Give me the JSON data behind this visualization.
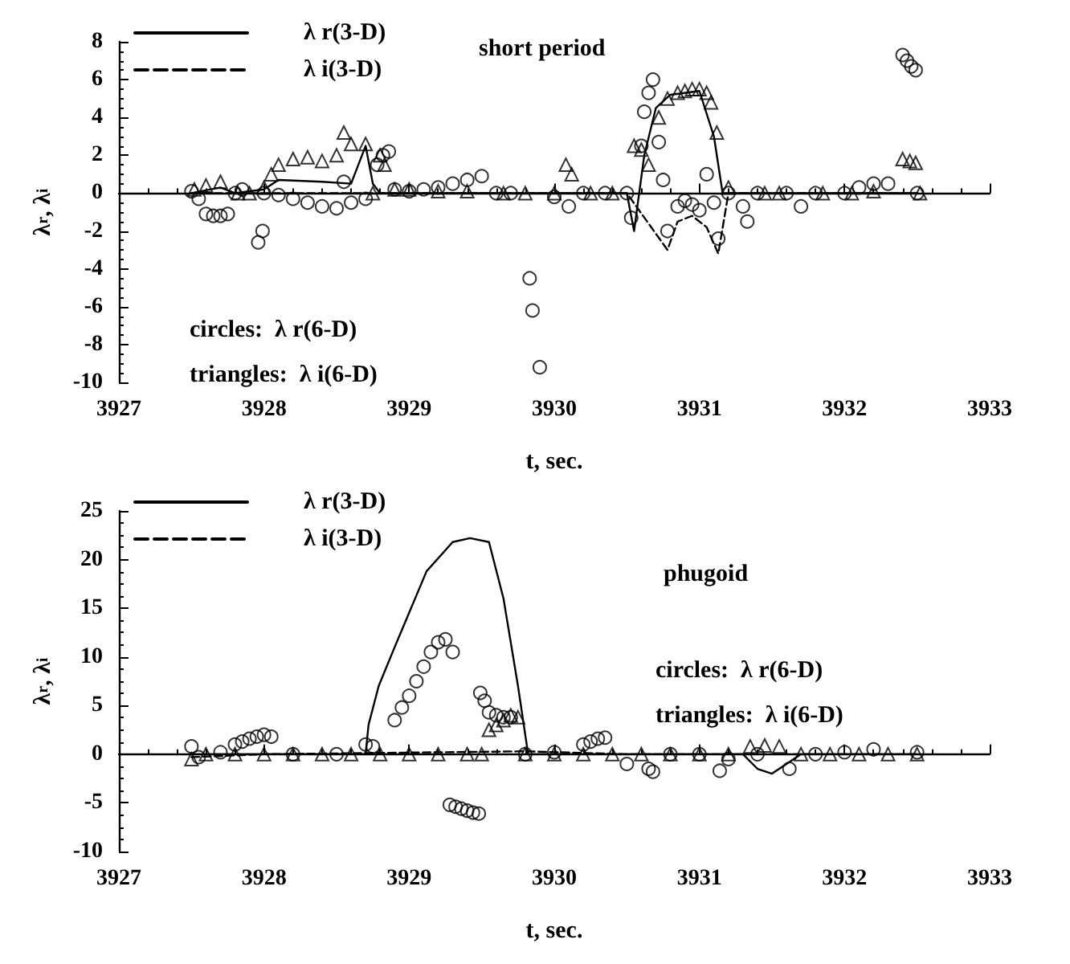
{
  "chart_data": [
    {
      "type": "line",
      "title": "short period",
      "xlabel": "t, sec.",
      "ylabel": "λ$_{r}$, λ$_{i}$",
      "annotations": [
        "circles:  λ r(6-D)",
        "triangles:  λ i(6-D)"
      ],
      "legend": "top left",
      "xlim": [
        3927,
        3933
      ],
      "xticks": [
        3927,
        3928,
        3929,
        3930,
        3931,
        3932,
        3933
      ],
      "ylim": [
        -10,
        8
      ],
      "yticks": [
        -10,
        -8,
        -6,
        -4,
        -2,
        0,
        2,
        4,
        6,
        8
      ],
      "series": [
        {
          "name": "λ r(3-D)",
          "type": "line",
          "color": "#000000",
          "marker": "none",
          "line_style": "solid",
          "x": [
            3927.5,
            3927.7,
            3927.8,
            3928.0,
            3928.1,
            3928.4,
            3928.6,
            3928.7,
            3928.75,
            3928.8,
            3929.5,
            3930.5,
            3930.55,
            3930.62,
            3930.7,
            3930.8,
            3931.0,
            3931.1,
            3931.16,
            3932.5
          ],
          "values": [
            0,
            0.3,
            0,
            0.2,
            0.7,
            0.6,
            0.5,
            2.5,
            0.5,
            0,
            0,
            0,
            -2.0,
            2.0,
            4.5,
            5.2,
            5.4,
            3.0,
            0,
            0
          ]
        },
        {
          "name": "λ i(3-D)",
          "type": "line",
          "color": "#000000",
          "marker": "none",
          "line_style": "dashed",
          "x": [
            3927.5,
            3928.5,
            3930.5,
            3930.78,
            3930.85,
            3930.95,
            3931.05,
            3931.13,
            3931.2,
            3932.5
          ],
          "values": [
            0,
            0,
            0,
            -3.0,
            -1.5,
            -1.2,
            -1.8,
            -3.2,
            0,
            0
          ]
        },
        {
          "type": "scatter",
          "color": "#000000",
          "marker": "circle",
          "x": [
            3927.5,
            3927.55,
            3927.6,
            3927.65,
            3927.7,
            3927.75,
            3927.8,
            3927.85,
            3927.96,
            3927.99,
            3928.0,
            3928.1,
            3928.2,
            3928.3,
            3928.4,
            3928.5,
            3928.55,
            3928.6,
            3928.7,
            3928.78,
            3928.82,
            3928.86,
            3928.9,
            3929.0,
            3929.1,
            3929.2,
            3929.3,
            3929.4,
            3929.5,
            3929.6,
            3929.7,
            3929.83,
            3929.85,
            3929.9,
            3930.0,
            3930.1,
            3930.2,
            3930.35,
            3930.5,
            3930.53,
            3930.6,
            3930.62,
            3930.65,
            3930.68,
            3930.72,
            3930.75,
            3930.78,
            3930.85,
            3930.9,
            3930.95,
            3931.0,
            3931.05,
            3931.1,
            3931.13,
            3931.2,
            3931.3,
            3931.33,
            3931.4,
            3931.6,
            3931.7,
            3931.8,
            3932.0,
            3932.1,
            3932.2,
            3932.3,
            3932.4,
            3932.43,
            3932.46,
            3932.49,
            3932.5
          ],
          "values": [
            0.1,
            -0.3,
            -1.1,
            -1.2,
            -1.2,
            -1.1,
            0.0,
            0.2,
            -2.6,
            -2.0,
            0.0,
            -0.1,
            -0.3,
            -0.5,
            -0.7,
            -0.8,
            0.6,
            -0.5,
            -0.3,
            1.5,
            2.0,
            2.2,
            0.2,
            0.1,
            0.2,
            0.3,
            0.5,
            0.7,
            0.9,
            0.0,
            0.0,
            -4.5,
            -6.2,
            -9.2,
            -0.2,
            -0.7,
            0.0,
            0.0,
            0.0,
            -1.3,
            2.5,
            4.3,
            5.3,
            6.0,
            2.7,
            0.7,
            -2.0,
            -0.7,
            -0.4,
            -0.6,
            -0.9,
            1.0,
            -0.5,
            -2.4,
            0.0,
            -0.7,
            -1.5,
            0.0,
            0.0,
            -0.7,
            0.0,
            0.0,
            0.3,
            0.5,
            0.5,
            7.3,
            7.0,
            6.7,
            6.5,
            0.0
          ]
        },
        {
          "type": "scatter",
          "color": "#000000",
          "marker": "triangle",
          "x": [
            3927.52,
            3927.6,
            3927.7,
            3927.82,
            3927.9,
            3928.0,
            3928.05,
            3928.1,
            3928.2,
            3928.3,
            3928.4,
            3928.5,
            3928.55,
            3928.6,
            3928.7,
            3928.75,
            3928.8,
            3928.83,
            3928.9,
            3929.0,
            3929.2,
            3929.4,
            3929.65,
            3929.8,
            3930.0,
            3930.08,
            3930.12,
            3930.25,
            3930.4,
            3930.55,
            3930.6,
            3930.65,
            3930.72,
            3930.78,
            3930.85,
            3930.9,
            3930.95,
            3931.0,
            3931.05,
            3931.08,
            3931.12,
            3931.2,
            3931.45,
            3931.55,
            3931.85,
            3932.05,
            3932.2,
            3932.4,
            3932.45,
            3932.49,
            3932.52
          ],
          "values": [
            0.2,
            0.4,
            0.6,
            0.0,
            0.0,
            0.3,
            1.0,
            1.5,
            1.8,
            1.9,
            1.7,
            2.0,
            3.2,
            2.6,
            2.6,
            0.0,
            2.0,
            1.5,
            0.2,
            0.2,
            0.1,
            0.1,
            0.0,
            0.0,
            0.0,
            1.5,
            1.0,
            0.0,
            0.0,
            2.5,
            2.3,
            1.5,
            4.0,
            5.0,
            5.3,
            5.4,
            5.5,
            5.5,
            5.3,
            4.8,
            3.2,
            0.3,
            0.0,
            0.0,
            0.0,
            0.0,
            0.1,
            1.8,
            1.7,
            1.6,
            0.0
          ]
        }
      ]
    },
    {
      "type": "line",
      "title": "phugoid",
      "xlabel": "t, sec.",
      "ylabel": "λ$_{r}$, λ$_{i}$",
      "annotations": [
        "circles:  λ r(6-D)",
        "triangles:  λ i(6-D)"
      ],
      "legend": "top left",
      "xlim": [
        3927,
        3933
      ],
      "xticks": [
        3927,
        3928,
        3929,
        3930,
        3931,
        3932,
        3933
      ],
      "ylim": [
        -10,
        25
      ],
      "yticks": [
        -10,
        -5,
        0,
        5,
        10,
        15,
        20,
        25
      ],
      "series": [
        {
          "name": "λ r(3-D)",
          "type": "line",
          "color": "#000000",
          "marker": "none",
          "line_style": "solid",
          "x": [
            3927.5,
            3928.7,
            3928.72,
            3928.79,
            3928.9,
            3929.12,
            3929.3,
            3929.42,
            3929.55,
            3929.65,
            3929.75,
            3929.82,
            3931.3,
            3931.4,
            3931.5,
            3931.6,
            3931.7,
            3932.5
          ],
          "values": [
            0,
            0,
            3,
            7,
            11,
            18.8,
            21.8,
            22.2,
            21.8,
            16,
            7,
            0,
            0,
            -1.5,
            -2.0,
            -1.0,
            0,
            0
          ]
        },
        {
          "name": "λ i(3-D)",
          "type": "line",
          "color": "#000000",
          "marker": "none",
          "line_style": "dashed",
          "x": [
            3927.5,
            3928.0,
            3929.8,
            3930.5,
            3932.5
          ],
          "values": [
            -0.3,
            0,
            0.3,
            0,
            0
          ]
        },
        {
          "type": "scatter",
          "color": "#000000",
          "marker": "circle",
          "x": [
            3927.5,
            3927.55,
            3927.7,
            3927.8,
            3927.85,
            3927.9,
            3927.95,
            3928.0,
            3928.05,
            3928.2,
            3928.5,
            3928.7,
            3928.75,
            3928.9,
            3928.95,
            3929.0,
            3929.05,
            3929.1,
            3929.15,
            3929.2,
            3929.25,
            3929.3,
            3929.28,
            3929.32,
            3929.36,
            3929.4,
            3929.44,
            3929.48,
            3929.49,
            3929.52,
            3929.55,
            3929.6,
            3929.65,
            3929.7,
            3929.8,
            3930.0,
            3930.2,
            3930.25,
            3930.3,
            3930.35,
            3930.5,
            3930.65,
            3930.68,
            3930.8,
            3931.0,
            3931.14,
            3931.2,
            3931.4,
            3931.62,
            3931.8,
            3932.0,
            3932.2,
            3932.5
          ],
          "values": [
            0.8,
            -0.3,
            0.2,
            1.0,
            1.3,
            1.6,
            1.8,
            2.0,
            1.8,
            0.0,
            0.0,
            1.0,
            0.8,
            3.5,
            4.8,
            6.0,
            7.5,
            9.0,
            10.5,
            11.5,
            11.8,
            10.5,
            -5.2,
            -5.4,
            -5.6,
            -5.8,
            -6.0,
            -6.1,
            6.3,
            5.5,
            4.3,
            4.0,
            3.8,
            3.8,
            0.0,
            0.2,
            1.0,
            1.3,
            1.6,
            1.7,
            -1.0,
            -1.5,
            -1.8,
            0.0,
            0.0,
            -1.7,
            -0.5,
            0.0,
            -1.5,
            0.0,
            0.2,
            0.5,
            0.2
          ]
        },
        {
          "type": "scatter",
          "color": "#000000",
          "marker": "triangle",
          "x": [
            3927.5,
            3927.6,
            3927.8,
            3928.0,
            3928.2,
            3928.4,
            3928.6,
            3928.8,
            3929.0,
            3929.2,
            3929.4,
            3929.5,
            3929.55,
            3929.6,
            3929.65,
            3929.7,
            3929.75,
            3929.8,
            3930.0,
            3930.2,
            3930.4,
            3930.6,
            3930.8,
            3931.0,
            3931.2,
            3931.35,
            3931.45,
            3931.55,
            3931.7,
            3931.9,
            3932.1,
            3932.3,
            3932.5
          ],
          "values": [
            -0.5,
            0.0,
            0.0,
            0.0,
            0.0,
            0.0,
            0.0,
            0.0,
            0.0,
            0.0,
            0.0,
            0.0,
            2.5,
            3.0,
            3.5,
            4.0,
            3.8,
            0.0,
            0.0,
            0.0,
            0.0,
            0.0,
            0.0,
            0.0,
            0.0,
            0.8,
            0.9,
            0.8,
            0.0,
            0.0,
            0.0,
            0.0,
            0.0
          ]
        }
      ]
    }
  ]
}
